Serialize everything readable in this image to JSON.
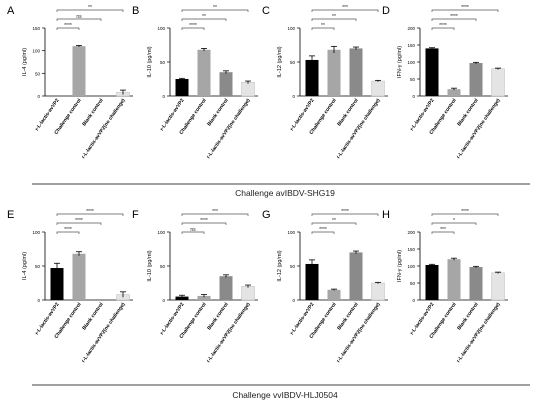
{
  "figure": {
    "colors": {
      "vp2": "#000000",
      "challenge": "#a6a6a6",
      "blank": "#8a8a8a",
      "nochallenge": "#e4e4e4",
      "axis": "#000000",
      "sig": "#555555"
    },
    "group_captions": [
      "Challenge avIBDV-SHG19",
      "Challenge vvIBDV-HLJ0504"
    ]
  },
  "chart_data": [
    {
      "type": "bar",
      "panel": "A",
      "group": 0,
      "ylabel": "IL-4 (pg/ml)",
      "ylim": [
        0,
        150
      ],
      "yticks": [
        0,
        50,
        100,
        150
      ],
      "categories": [
        "r-L-lactis-avVP2",
        "Challenge control",
        "Blank control",
        "r-L-lactis-avVP2(no challenge)"
      ],
      "values": [
        0,
        110,
        0,
        8
      ],
      "errors": [
        0,
        1.5,
        0,
        5
      ],
      "comparisons": [
        {
          "to": 3,
          "label": "**"
        },
        {
          "to": 2,
          "label": "ns"
        },
        {
          "to": 1,
          "label": "****"
        }
      ]
    },
    {
      "type": "bar",
      "panel": "B",
      "group": 0,
      "ylabel": "IL-10 (pg/ml)",
      "ylim": [
        0,
        100
      ],
      "yticks": [
        0,
        50,
        100
      ],
      "categories": [
        "r-L-lactis-avVP2",
        "Challenge control",
        "Blank control",
        "r-L-lactis-avVP2(no challenge)"
      ],
      "values": [
        25,
        68,
        35,
        20
      ],
      "errors": [
        1,
        2,
        2,
        2
      ],
      "comparisons": [
        {
          "to": 3,
          "label": "**"
        },
        {
          "to": 2,
          "label": "**"
        },
        {
          "to": 1,
          "label": "****"
        }
      ]
    },
    {
      "type": "bar",
      "panel": "C",
      "group": 0,
      "ylabel": "IL-12 (pg/ml)",
      "ylim": [
        0,
        100
      ],
      "yticks": [
        0,
        50,
        100
      ],
      "categories": [
        "r-L-lactis-avVP2",
        "Challenge control",
        "Blank control",
        "r-L-lactis-avVP2(no challenge)"
      ],
      "values": [
        53,
        68,
        70,
        22
      ],
      "errors": [
        6,
        5,
        2,
        1
      ],
      "comparisons": [
        {
          "to": 3,
          "label": "***"
        },
        {
          "to": 2,
          "label": "**"
        },
        {
          "to": 1,
          "label": "**"
        }
      ]
    },
    {
      "type": "bar",
      "panel": "D",
      "group": 0,
      "ylabel": "IFN-γ (pg/ml)",
      "ylim": [
        0,
        200
      ],
      "yticks": [
        0,
        50,
        100,
        150,
        200
      ],
      "categories": [
        "r-L-lactis-avVP2",
        "Challenge control",
        "Blank control",
        "r-L-lactis-avVP2(no challenge)"
      ],
      "values": [
        140,
        20,
        97,
        80
      ],
      "errors": [
        2,
        3,
        2,
        2
      ],
      "comparisons": [
        {
          "to": 3,
          "label": "****"
        },
        {
          "to": 2,
          "label": "****"
        },
        {
          "to": 1,
          "label": "****"
        }
      ]
    },
    {
      "type": "bar",
      "panel": "E",
      "group": 1,
      "ylabel": "IL-4 (pg/ml)",
      "ylim": [
        0,
        100
      ],
      "yticks": [
        0,
        50,
        100
      ],
      "categories": [
        "r-L-lactis-avVP2",
        "Challenge control",
        "Blank control",
        "r-L-lactis-avVP2(no challenge)"
      ],
      "values": [
        47,
        68,
        0,
        8
      ],
      "errors": [
        7,
        3,
        0,
        4
      ],
      "comparisons": [
        {
          "to": 3,
          "label": "****"
        },
        {
          "to": 2,
          "label": "****"
        },
        {
          "to": 1,
          "label": "****"
        }
      ]
    },
    {
      "type": "bar",
      "panel": "F",
      "group": 1,
      "ylabel": "IL-10 (pg/ml)",
      "ylim": [
        0,
        100
      ],
      "yticks": [
        0,
        50,
        100
      ],
      "categories": [
        "r-L-lactis-avVP2",
        "Challenge control",
        "Blank control",
        "r-L-lactis-avVP2(no challenge)"
      ],
      "values": [
        5,
        6,
        35,
        20
      ],
      "errors": [
        2,
        2,
        2,
        2
      ],
      "comparisons": [
        {
          "to": 3,
          "label": "***"
        },
        {
          "to": 2,
          "label": "****"
        },
        {
          "to": 1,
          "label": "ns"
        }
      ]
    },
    {
      "type": "bar",
      "panel": "G",
      "group": 1,
      "ylabel": "IL-12 (pg/ml)",
      "ylim": [
        0,
        100
      ],
      "yticks": [
        0,
        50,
        100
      ],
      "categories": [
        "r-L-lactis-avVP2",
        "Challenge control",
        "Blank control",
        "r-L-lactis-avVP2(no challenge)"
      ],
      "values": [
        53,
        15,
        70,
        25
      ],
      "errors": [
        6,
        1,
        2,
        1
      ],
      "comparisons": [
        {
          "to": 3,
          "label": "****"
        },
        {
          "to": 2,
          "label": "**"
        },
        {
          "to": 1,
          "label": "****"
        }
      ]
    },
    {
      "type": "bar",
      "panel": "H",
      "group": 1,
      "ylabel": "IFN-γ (pg/ml)",
      "ylim": [
        0,
        200
      ],
      "yticks": [
        0,
        50,
        100,
        150,
        200
      ],
      "categories": [
        "r-L-lactis-avVP2",
        "Challenge control",
        "Blank control",
        "r-L-lactis-avVP2(no challenge)"
      ],
      "values": [
        103,
        120,
        97,
        80
      ],
      "errors": [
        2,
        3,
        2,
        2
      ],
      "comparisons": [
        {
          "to": 3,
          "label": "****"
        },
        {
          "to": 2,
          "label": "*"
        },
        {
          "to": 1,
          "label": "***"
        }
      ]
    }
  ]
}
